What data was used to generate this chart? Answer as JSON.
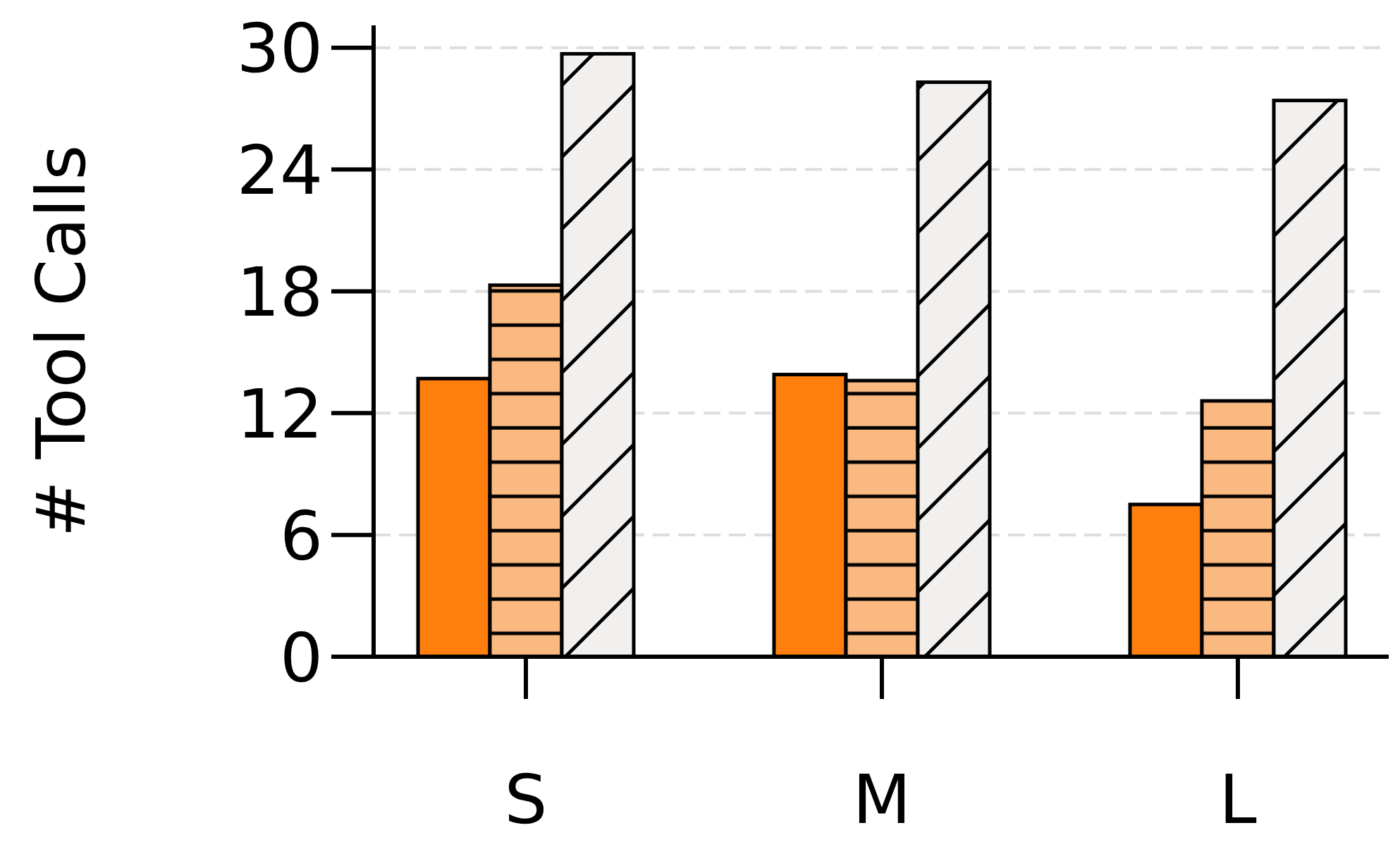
{
  "chart_data": {
    "type": "bar",
    "ylabel": "# Tool Calls",
    "categories": [
      "S",
      "M",
      "L"
    ],
    "series": [
      {
        "color": "#ff7f0e",
        "values": [
          13.7,
          13.9,
          7.5
        ]
      },
      {
        "color": "#fbb982",
        "values": [
          18.3,
          13.6,
          12.6
        ]
      },
      {
        "color": "#f2f0ef",
        "values": [
          29.7,
          28.3,
          27.4
        ]
      }
    ],
    "ylim": [
      0,
      31.1
    ],
    "yticks": [
      0,
      6,
      12,
      18,
      24,
      30
    ],
    "grid": "y"
  }
}
